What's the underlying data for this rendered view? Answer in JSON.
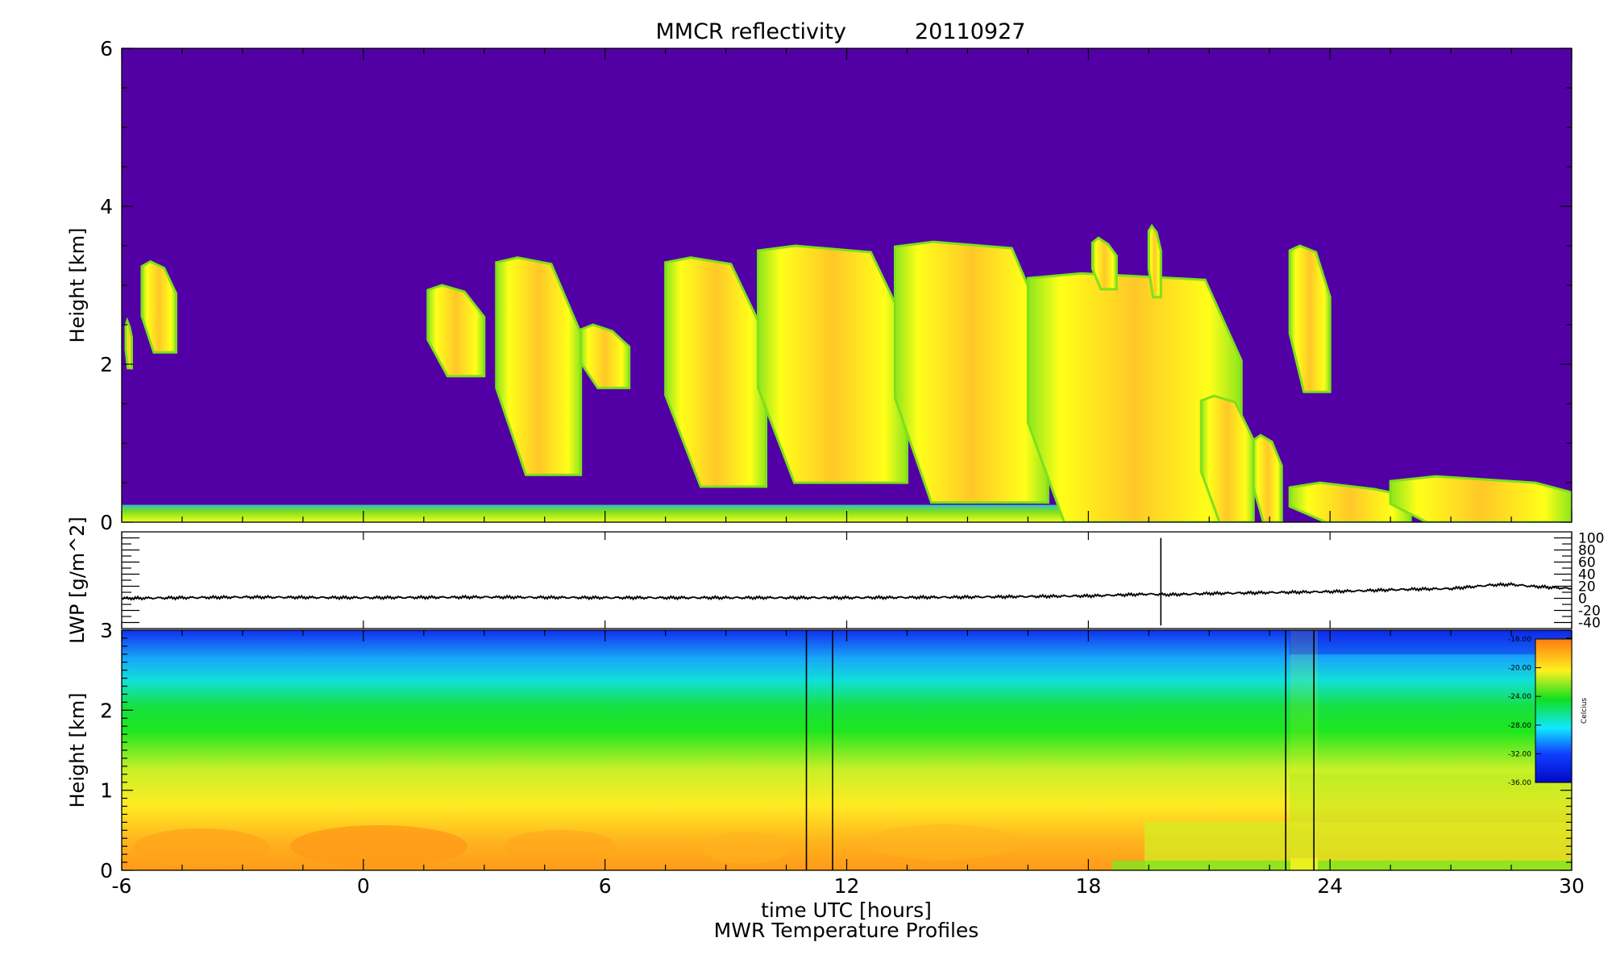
{
  "chart_data": [
    {
      "type": "heatmap",
      "panel": "reflectivity",
      "title": "MMCR reflectivity",
      "date": "20110927",
      "ylabel": "Height [km]",
      "xlim": [
        -6,
        30
      ],
      "ylim": [
        0,
        6
      ],
      "xticks": [
        "-6",
        "0",
        "6",
        "12",
        "18",
        "24",
        "30"
      ],
      "yticks": [
        "0",
        "2",
        "4",
        "6"
      ],
      "background_color": "#5200A6",
      "colors": {
        "edge": "#7FE01A",
        "mid": "#FFFF19",
        "core": "#FFB020"
      },
      "cloud_regions": [
        {
          "t0": -5.9,
          "t1": -5.75,
          "base": 1.95,
          "top": 2.55
        },
        {
          "t0": -5.5,
          "t1": -4.65,
          "base": 2.15,
          "top": 3.3
        },
        {
          "t0": 1.6,
          "t1": 3.0,
          "base": 1.85,
          "top": 3.0
        },
        {
          "t0": 3.3,
          "t1": 5.4,
          "base": 0.6,
          "top": 3.35
        },
        {
          "t0": 5.4,
          "t1": 6.6,
          "base": 1.7,
          "top": 2.5
        },
        {
          "t0": 7.5,
          "t1": 10.0,
          "base": 0.45,
          "top": 3.35
        },
        {
          "t0": 9.8,
          "t1": 13.5,
          "base": 0.5,
          "top": 3.5
        },
        {
          "t0": 13.2,
          "t1": 17.0,
          "base": 0.25,
          "top": 3.55
        },
        {
          "t0": 16.5,
          "t1": 21.8,
          "base": 0.0,
          "top": 3.15
        },
        {
          "t0": 18.1,
          "t1": 18.7,
          "base": 2.95,
          "top": 3.6
        },
        {
          "t0": 19.5,
          "t1": 19.8,
          "base": 2.85,
          "top": 3.75
        },
        {
          "t0": 20.8,
          "t1": 22.1,
          "base": 0.0,
          "top": 1.6
        },
        {
          "t0": 22.1,
          "t1": 22.8,
          "base": 0.0,
          "top": 1.1
        },
        {
          "t0": 23.0,
          "t1": 24.0,
          "base": 1.65,
          "top": 3.5
        },
        {
          "t0": 23.0,
          "t1": 26.0,
          "base": 0.0,
          "top": 0.5
        },
        {
          "t0": 25.5,
          "t1": 30.0,
          "base": 0.0,
          "top": 0.58
        }
      ],
      "surface_layer": {
        "t0": -6,
        "t1": 21.5,
        "base": 0.0,
        "top": 0.22
      }
    },
    {
      "type": "line",
      "panel": "lwp",
      "ylabel": "LWP [g/m^2]",
      "xlim": [
        -6,
        30
      ],
      "ylim": [
        -50,
        110
      ],
      "yticks": [
        "100",
        "80",
        "60",
        "40",
        "20",
        "0",
        "-20",
        "-40"
      ],
      "x": [
        -6,
        -3,
        0,
        3,
        6,
        9,
        12,
        15,
        18,
        19.5,
        20,
        21,
        22,
        24,
        26,
        27,
        28,
        28.5,
        29,
        30
      ],
      "y": [
        0,
        2,
        1,
        2,
        1,
        1,
        1,
        2,
        4,
        7,
        6,
        8,
        9,
        11,
        15,
        16,
        22,
        23,
        20,
        16
      ],
      "spike": {
        "x": 19.8,
        "min": -45,
        "max": 100
      }
    },
    {
      "type": "heatmap",
      "panel": "temperature",
      "title": "MWR Temperature Profiles",
      "xlabel": "time UTC [hours]",
      "ylabel": "Height [km]",
      "xlim": [
        -6,
        30
      ],
      "ylim": [
        0,
        3
      ],
      "xticks": [
        "-6",
        "0",
        "6",
        "12",
        "18",
        "24",
        "30"
      ],
      "yticks": [
        "0",
        "1",
        "2",
        "3"
      ],
      "vertical_lines_hours": [
        11.0,
        11.65,
        22.9,
        23.6
      ],
      "colorbar": {
        "label": "Celcius",
        "ticks": [
          "-16.00",
          "-20.00",
          "-24.00",
          "-28.00",
          "-32.00",
          "-36.00"
        ],
        "min": -36,
        "max": -16
      }
    }
  ]
}
